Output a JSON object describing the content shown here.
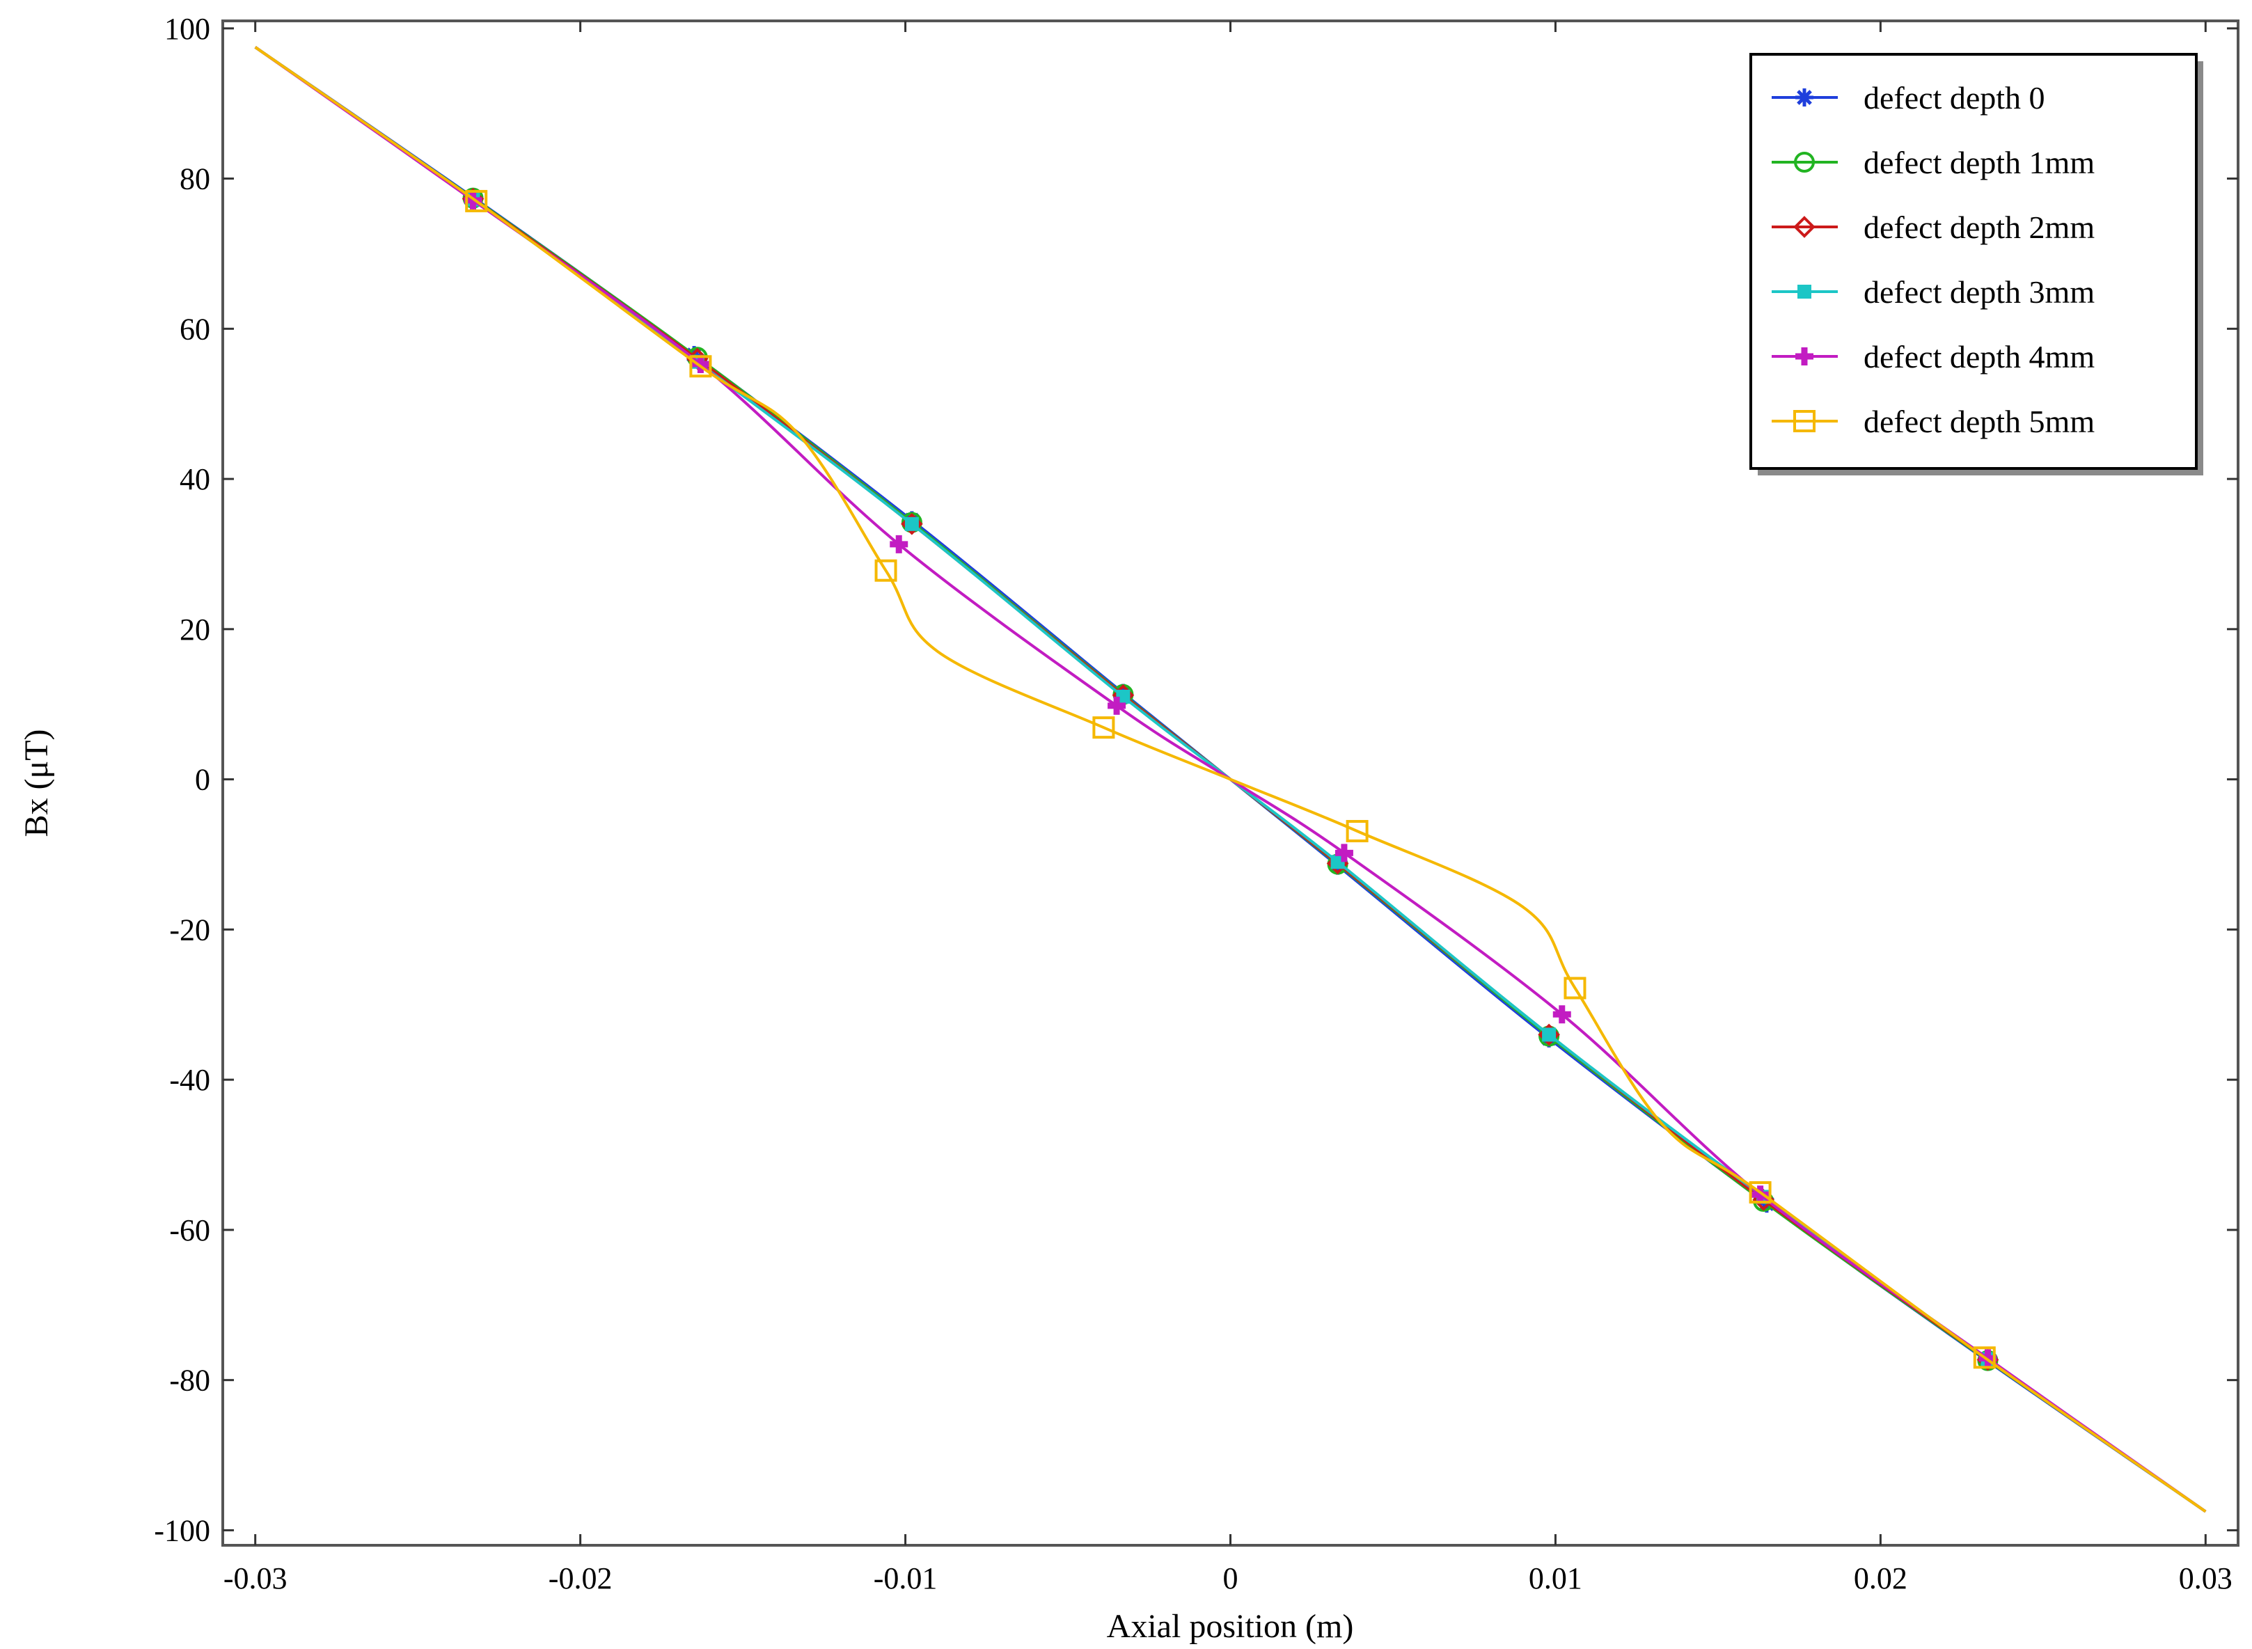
{
  "chart_data": {
    "type": "line",
    "title": "",
    "xlabel": "Axial position (m)",
    "ylabel": "Bx (μT)",
    "xlim": [
      -0.031,
      0.031
    ],
    "ylim": [
      -102,
      101
    ],
    "xticks": [
      -0.03,
      -0.02,
      -0.01,
      0,
      0.01,
      0.02,
      0.03
    ],
    "xtick_labels": [
      "-0.03",
      "-0.02",
      "-0.01",
      "0",
      "0.01",
      "0.02",
      "0.03"
    ],
    "yticks": [
      -100,
      -80,
      -60,
      -40,
      -20,
      0,
      20,
      40,
      60,
      80,
      100
    ],
    "ytick_labels": [
      "-100",
      "-80",
      "-60",
      "-40",
      "-20",
      "0",
      "20",
      "40",
      "60",
      "80",
      "100"
    ],
    "grid": false,
    "legend_position": "top-right",
    "series": [
      {
        "name": "defect depth 0",
        "color": "#1f3fdc",
        "marker": "asterisk",
        "curve": [
          [
            -0.03,
            97.5
          ],
          [
            -0.0233,
            77.5
          ],
          [
            -0.0165,
            56.5
          ],
          [
            -0.0098,
            34.5
          ],
          [
            -0.0033,
            11.5
          ],
          [
            0,
            0
          ],
          [
            0.0033,
            -11.5
          ],
          [
            0.0098,
            -34.5
          ],
          [
            0.0165,
            -56.5
          ],
          [
            0.0233,
            -77.5
          ],
          [
            0.03,
            -97.5
          ]
        ],
        "markers": [
          [
            -0.0233,
            77.5
          ],
          [
            -0.0165,
            56.5
          ],
          [
            -0.0098,
            34.5
          ],
          [
            -0.0033,
            11.5
          ],
          [
            0.0033,
            -11.5
          ],
          [
            0.0098,
            -34.5
          ],
          [
            0.0165,
            -56.5
          ],
          [
            0.0233,
            -77.5
          ]
        ]
      },
      {
        "name": "defect depth 1mm",
        "color": "#22b422",
        "marker": "circle",
        "curve": [
          [
            -0.03,
            97.5
          ],
          [
            -0.0233,
            77.4
          ],
          [
            -0.0164,
            56.2
          ],
          [
            -0.0098,
            34.2
          ],
          [
            -0.0033,
            11.3
          ],
          [
            0,
            0
          ],
          [
            0.0033,
            -11.3
          ],
          [
            0.0098,
            -34.2
          ],
          [
            0.0164,
            -56.2
          ],
          [
            0.0233,
            -77.4
          ],
          [
            0.03,
            -97.5
          ]
        ],
        "markers": [
          [
            -0.0233,
            77.4
          ],
          [
            -0.0164,
            56.2
          ],
          [
            -0.0098,
            34.2
          ],
          [
            -0.0033,
            11.3
          ],
          [
            0.0033,
            -11.3
          ],
          [
            0.0098,
            -34.2
          ],
          [
            0.0164,
            -56.2
          ],
          [
            0.0233,
            -77.4
          ]
        ]
      },
      {
        "name": "defect depth 2mm",
        "color": "#cc1a1a",
        "marker": "diamond",
        "curve": [
          [
            -0.03,
            97.5
          ],
          [
            -0.0233,
            77.3
          ],
          [
            -0.0164,
            56.0
          ],
          [
            -0.0098,
            34.0
          ],
          [
            -0.0033,
            11.2
          ],
          [
            0,
            0
          ],
          [
            0.0033,
            -11.2
          ],
          [
            0.0098,
            -34.0
          ],
          [
            0.0164,
            -56.0
          ],
          [
            0.0233,
            -77.3
          ],
          [
            0.03,
            -97.5
          ]
        ],
        "markers": [
          [
            -0.0233,
            77.3
          ],
          [
            -0.0164,
            56.0
          ],
          [
            -0.0098,
            34.0
          ],
          [
            -0.0033,
            11.2
          ],
          [
            0.0033,
            -11.2
          ],
          [
            0.0098,
            -34.0
          ],
          [
            0.0164,
            -56.0
          ],
          [
            0.0233,
            -77.3
          ]
        ]
      },
      {
        "name": "defect depth 3mm",
        "color": "#1cc6c6",
        "marker": "square-filled",
        "curve": [
          [
            -0.03,
            97.5
          ],
          [
            -0.0233,
            77.2
          ],
          [
            -0.0164,
            55.6
          ],
          [
            -0.0098,
            34.0
          ],
          [
            -0.0033,
            11.0
          ],
          [
            0,
            0
          ],
          [
            0.0033,
            -11.0
          ],
          [
            0.0098,
            -34.0
          ],
          [
            0.0164,
            -55.6
          ],
          [
            0.0233,
            -77.2
          ],
          [
            0.03,
            -97.5
          ]
        ],
        "markers": [
          [
            -0.0233,
            77.2
          ],
          [
            -0.0164,
            55.6
          ],
          [
            -0.0098,
            34.0
          ],
          [
            -0.0033,
            11.0
          ],
          [
            0.0033,
            -11.0
          ],
          [
            0.0098,
            -34.0
          ],
          [
            0.0164,
            -55.6
          ],
          [
            0.0233,
            -77.2
          ]
        ]
      },
      {
        "name": "defect depth 4mm",
        "color": "#c21cc2",
        "marker": "plus",
        "curve": [
          [
            -0.03,
            97.5
          ],
          [
            -0.0233,
            77.1
          ],
          [
            -0.0163,
            55.3
          ],
          [
            -0.0102,
            31.3
          ],
          [
            -0.0035,
            9.8
          ],
          [
            0,
            0
          ],
          [
            0.0035,
            -9.8
          ],
          [
            0.0102,
            -31.3
          ],
          [
            0.0163,
            -55.3
          ],
          [
            0.0233,
            -77.1
          ],
          [
            0.03,
            -97.5
          ]
        ],
        "markers": [
          [
            -0.0233,
            77.1
          ],
          [
            -0.0163,
            55.3
          ],
          [
            -0.0102,
            31.3
          ],
          [
            -0.0035,
            9.8
          ],
          [
            0.0035,
            -9.8
          ],
          [
            0.0102,
            -31.3
          ],
          [
            0.0163,
            -55.3
          ],
          [
            0.0233,
            -77.1
          ]
        ]
      },
      {
        "name": "defect depth 5mm",
        "color": "#f5b800",
        "marker": "square",
        "curve": [
          [
            -0.03,
            97.5
          ],
          [
            -0.0232,
            77.0
          ],
          [
            -0.0163,
            55.0
          ],
          [
            -0.0133,
            46.0
          ],
          [
            -0.0106,
            27.8
          ],
          [
            -0.009,
            17.0
          ],
          [
            -0.0039,
            6.9
          ],
          [
            0,
            0
          ],
          [
            0.0039,
            -6.9
          ],
          [
            0.009,
            -17.0
          ],
          [
            0.0106,
            -27.8
          ],
          [
            0.0133,
            -46.0
          ],
          [
            0.0163,
            -55.0
          ],
          [
            0.0232,
            -77.0
          ],
          [
            0.03,
            -97.5
          ]
        ],
        "markers": [
          [
            -0.0232,
            77.0
          ],
          [
            -0.0163,
            55.0
          ],
          [
            -0.0106,
            27.8
          ],
          [
            -0.0039,
            6.9
          ],
          [
            0.0039,
            -6.9
          ],
          [
            0.0106,
            -27.8
          ],
          [
            0.0163,
            -55.0
          ],
          [
            0.0232,
            -77.0
          ]
        ]
      }
    ]
  }
}
